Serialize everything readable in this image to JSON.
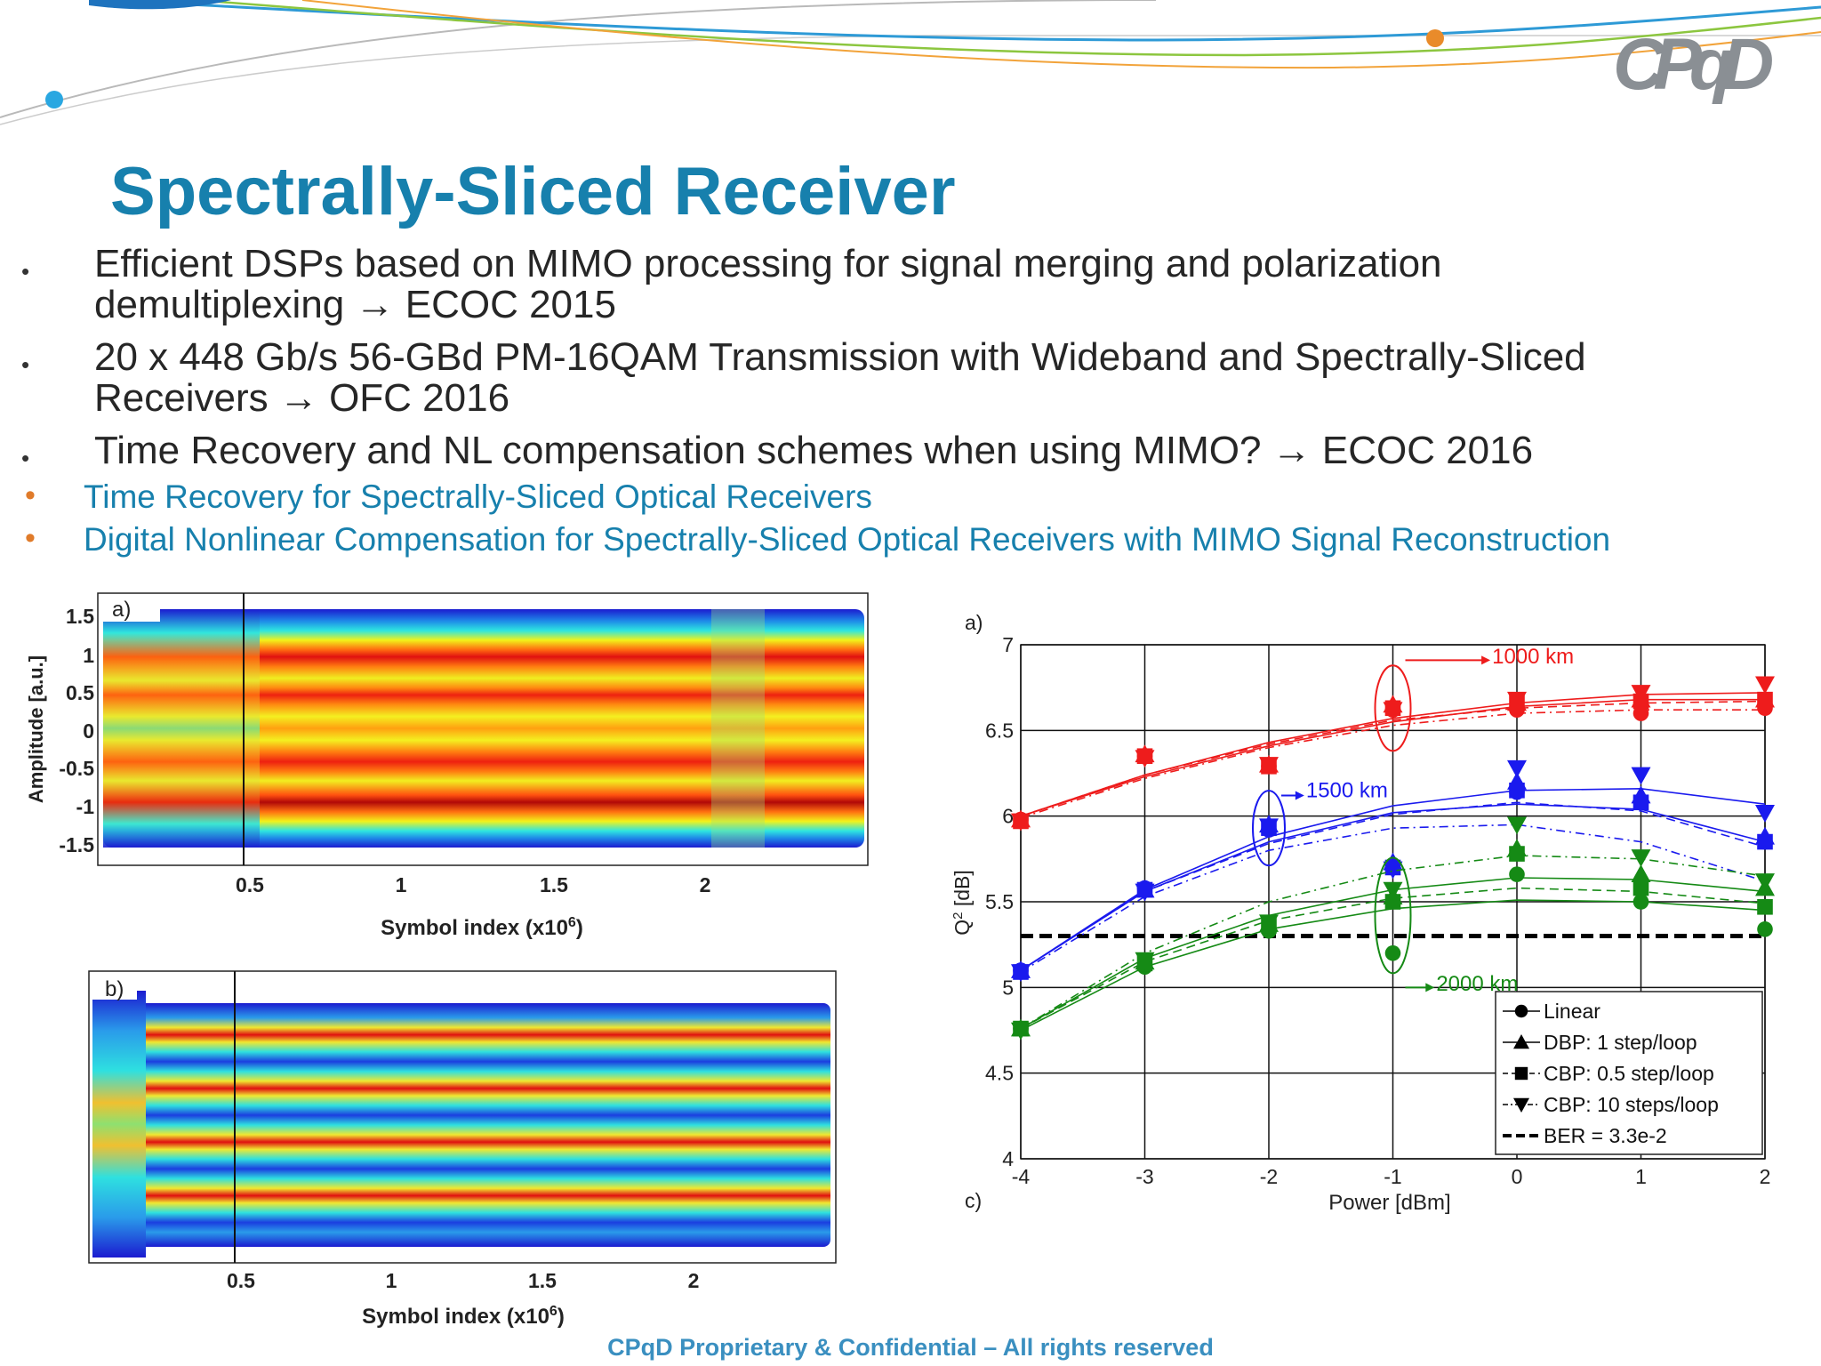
{
  "slide": {
    "title": "Spectrally-Sliced Receiver",
    "bullets": [
      {
        "line1": "Efficient DSPs based on MIMO processing for signal merging and polarization",
        "line2": "demultiplexing → ECOC 2015"
      },
      {
        "line1": "20 x 448 Gb/s 56-GBd PM-16QAM Transmission with Wideband and Spectrally-Sliced",
        "line2": "Receivers → OFC 2016"
      },
      {
        "line1": "Time Recovery and NL compensation schemes when using MIMO? → ECOC 2016",
        "line2": ""
      }
    ],
    "sub_bullets": [
      "Time Recovery for Spectrally-Sliced Optical Receivers",
      "Digital Nonlinear Compensation for Spectrally-Sliced Optical Receivers with MIMO Signal Reconstruction"
    ],
    "footer": "CPqD Proprietary & Confidential – All rights reserved",
    "logo_text": "CPqD",
    "colors": {
      "title": "#1780ad",
      "sub_bullet": "#1780ad",
      "orange_bullet": "#e07b2a",
      "footer": "#3a8fc0",
      "logo": "#8a8f94"
    }
  },
  "figures": {
    "heatmap_a": {
      "panel_label": "a)",
      "ylabel": "Amplitude [a.u.]",
      "xlabel": "Symbol index (x10",
      "xlabel_sup": "6",
      "xlabel_end": ")",
      "xticks": [
        "0.5",
        "1",
        "1.5",
        "2"
      ],
      "yticks": [
        "1.5",
        "1",
        "0.5",
        "0",
        "-0.5",
        "-1",
        "-1.5"
      ]
    },
    "heatmap_b": {
      "panel_label": "b)",
      "xlabel": "Symbol index (x10",
      "xlabel_sup": "6",
      "xlabel_end": ")",
      "xticks": [
        "0.5",
        "1",
        "1.5",
        "2"
      ]
    }
  },
  "chart_data": {
    "type": "line",
    "panel_label_top": "a)",
    "panel_label_bottom": "c)",
    "xlabel": "Power [dBm]",
    "ylabel": "Q",
    "ylabel_sup": "2",
    "ylabel_end": " [dB]",
    "x": [
      -4,
      -3,
      -2,
      -1,
      0,
      1,
      2
    ],
    "xticks": [
      "-4",
      "-3",
      "-2",
      "-1",
      "0",
      "1",
      "2"
    ],
    "yticks": [
      "4",
      "4.5",
      "5",
      "5.5",
      "6",
      "6.5",
      "7"
    ],
    "xlim": [
      -4,
      2
    ],
    "ylim": [
      4,
      7
    ],
    "grid": true,
    "legend_position": "bottom-right",
    "legend": [
      {
        "label": "Linear",
        "marker": "circle",
        "dash": "solid"
      },
      {
        "label": "DBP: 1 step/loop",
        "marker": "triangle-up",
        "dash": "solid"
      },
      {
        "label": "CBP: 0.5 step/loop",
        "marker": "square",
        "dash": "dash"
      },
      {
        "label": "CBP: 10 steps/loop",
        "marker": "triangle-down",
        "dash": "dashdot"
      },
      {
        "label": "BER = 3.3e-2",
        "marker": "none",
        "dash": "thick-dash"
      }
    ],
    "threshold": 5.3,
    "groups": [
      {
        "annotation": "1000 km",
        "color": "#ee1c1c",
        "series": [
          {
            "marker": "circle",
            "values": [
              5.98,
              6.35,
              6.29,
              6.62,
              6.62,
              6.6,
              6.63
            ]
          },
          {
            "marker": "triangle-up",
            "values": [
              5.98,
              6.36,
              6.3,
              6.65,
              6.66,
              6.68,
              6.68
            ]
          },
          {
            "marker": "square",
            "values": [
              5.97,
              6.35,
              6.29,
              6.63,
              6.66,
              6.67,
              6.68
            ]
          },
          {
            "marker": "triangle-down",
            "values": [
              5.97,
              6.34,
              6.3,
              6.62,
              6.68,
              6.72,
              6.77
            ]
          }
        ],
        "fits": [
          [
            6.0,
            6.23,
            6.41,
            6.55,
            6.64,
            6.68,
            6.68
          ],
          [
            6.0,
            6.24,
            6.43,
            6.57,
            6.66,
            6.71,
            6.72
          ],
          [
            6.0,
            6.24,
            6.42,
            6.56,
            6.63,
            6.66,
            6.67
          ],
          [
            5.99,
            6.22,
            6.4,
            6.53,
            6.6,
            6.62,
            6.62
          ]
        ]
      },
      {
        "annotation": "1500 km",
        "color": "#1a1aee",
        "series": [
          {
            "marker": "circle",
            "values": [
              5.1,
              5.58,
              5.92,
              5.7,
              6.14,
              6.08,
              5.85
            ]
          },
          {
            "marker": "triangle-up",
            "values": [
              5.1,
              5.57,
              5.95,
              5.73,
              6.2,
              6.12,
              5.88
            ]
          },
          {
            "marker": "square",
            "values": [
              5.09,
              5.57,
              5.93,
              5.7,
              6.15,
              6.08,
              5.85
            ]
          },
          {
            "marker": "triangle-down",
            "values": [
              5.09,
              5.56,
              5.94,
              5.69,
              6.28,
              6.24,
              6.02
            ]
          }
        ],
        "fits": [
          [
            5.1,
            5.56,
            5.85,
            6.02,
            6.07,
            6.04,
            5.85
          ],
          [
            5.1,
            5.57,
            5.88,
            6.06,
            6.15,
            6.16,
            6.07
          ],
          [
            5.1,
            5.56,
            5.84,
            6.01,
            6.08,
            6.03,
            5.82
          ],
          [
            5.09,
            5.53,
            5.8,
            5.93,
            5.95,
            5.85,
            5.62
          ]
        ]
      },
      {
        "annotation": "2000 km",
        "color": "#158a15",
        "series": [
          {
            "marker": "circle",
            "values": [
              4.76,
              5.12,
              5.33,
              5.2,
              5.66,
              5.5,
              5.34
            ]
          },
          {
            "marker": "triangle-up",
            "values": [
              4.76,
              5.15,
              5.37,
              5.53,
              5.81,
              5.66,
              5.58
            ]
          },
          {
            "marker": "square",
            "values": [
              4.76,
              5.14,
              5.36,
              5.5,
              5.78,
              5.58,
              5.47
            ]
          },
          {
            "marker": "triangle-down",
            "values": [
              4.75,
              5.16,
              5.38,
              5.57,
              5.95,
              5.76,
              5.62
            ]
          }
        ],
        "fits": [
          [
            4.75,
            5.12,
            5.34,
            5.46,
            5.51,
            5.5,
            5.45
          ],
          [
            4.76,
            5.17,
            5.42,
            5.57,
            5.64,
            5.63,
            5.56
          ],
          [
            4.76,
            5.15,
            5.39,
            5.52,
            5.58,
            5.56,
            5.49
          ],
          [
            4.76,
            5.2,
            5.5,
            5.68,
            5.77,
            5.75,
            5.65
          ]
        ]
      }
    ]
  }
}
